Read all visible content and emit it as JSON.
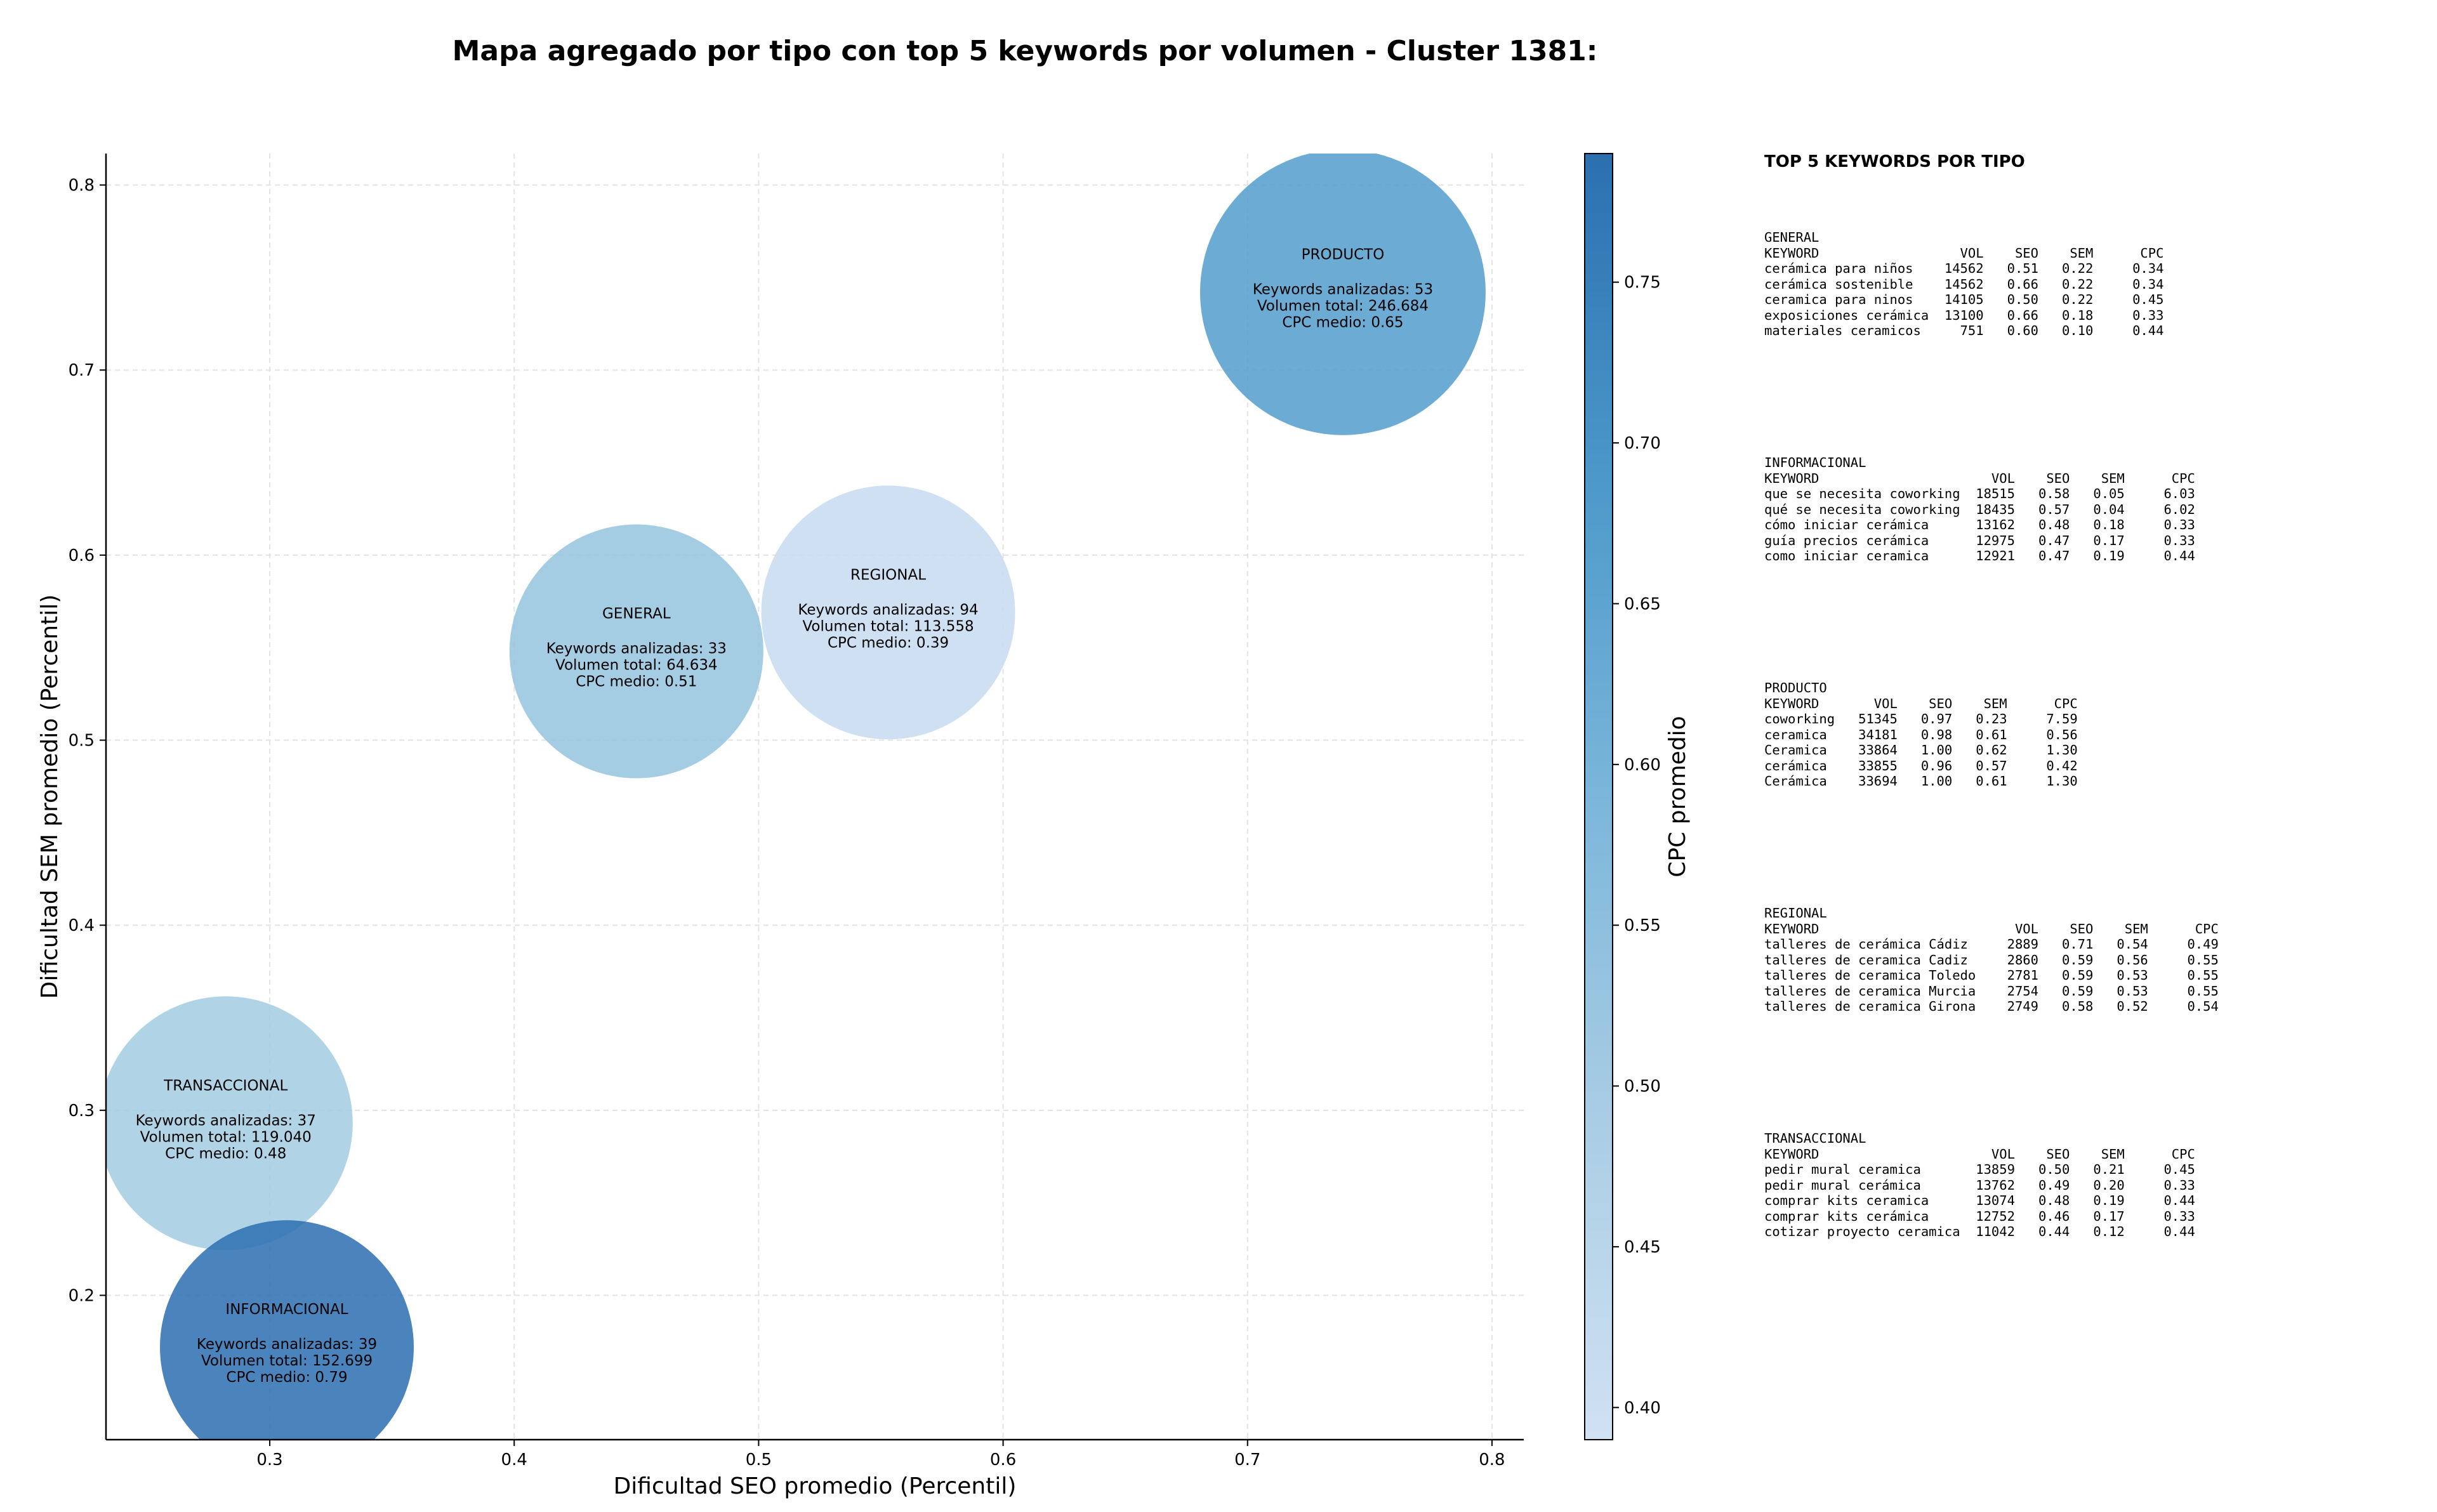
{
  "title": "Mapa agregado por tipo con top 5 keywords por volumen - Cluster 1381:",
  "chart_data": {
    "type": "scatter",
    "subtype": "bubble",
    "xlabel": "Dificultad SEO promedio (Percentil)",
    "ylabel": "Dificultad SEM promedio (Percentil)",
    "xlim": [
      0.233,
      0.813
    ],
    "ylim": [
      0.122,
      0.817
    ],
    "xticks": [
      0.3,
      0.4,
      0.5,
      0.6,
      0.7,
      0.8
    ],
    "yticks": [
      0.2,
      0.3,
      0.4,
      0.5,
      0.6,
      0.7,
      0.8
    ],
    "grid": true,
    "points": [
      {
        "x": 0.739,
        "y": 0.742,
        "cpc": 0.65,
        "volume": 246684,
        "name": "PRODUCTO",
        "lines": [
          "Keywords analizadas: 53",
          "Volumen total: 246.684",
          "CPC medio: 0.65"
        ]
      },
      {
        "x": 0.45,
        "y": 0.548,
        "cpc": 0.51,
        "volume": 64634,
        "name": "GENERAL",
        "lines": [
          "Keywords analizadas: 33",
          "Volumen total: 64.634",
          "CPC medio: 0.51"
        ]
      },
      {
        "x": 0.553,
        "y": 0.569,
        "cpc": 0.39,
        "volume": 113558,
        "name": "REGIONAL",
        "lines": [
          "Keywords analizadas: 94",
          "Volumen total: 113.558",
          "CPC medio: 0.39"
        ]
      },
      {
        "x": 0.282,
        "y": 0.293,
        "cpc": 0.48,
        "volume": 119040,
        "name": "TRANSACCIONAL",
        "lines": [
          "Keywords analizadas: 37",
          "Volumen total: 119.040",
          "CPC medio: 0.48"
        ]
      },
      {
        "x": 0.307,
        "y": 0.172,
        "cpc": 0.79,
        "volume": 152699,
        "name": "INFORMACIONAL",
        "lines": [
          "Keywords analizadas: 39",
          "Volumen total: 152.699",
          "CPC medio: 0.79"
        ]
      }
    ],
    "colorbar": {
      "label": "CPC promedio",
      "min": 0.39,
      "max": 0.79,
      "ticks": [
        "0.40",
        "0.45",
        "0.50",
        "0.55",
        "0.60",
        "0.65",
        "0.70",
        "0.75"
      ],
      "colormap": [
        "#c6dbef",
        "#9ecae1",
        "#6baed6",
        "#4292c6",
        "#2b6fb0"
      ]
    }
  },
  "panel": {
    "title": "TOP 5 KEYWORDS POR TIPO",
    "blocks": [
      {
        "lines": [
          "GENERAL",
          "KEYWORD                  VOL    SEO    SEM      CPC",
          "cerámica para niños    14562   0.51   0.22     0.34",
          "cerámica sostenible    14562   0.66   0.22     0.34",
          "ceramica para ninos    14105   0.50   0.22     0.45",
          "exposiciones cerámica  13100   0.66   0.18     0.33",
          "materiales ceramicos     751   0.60   0.10     0.44"
        ]
      },
      {
        "lines": [
          "INFORMACIONAL",
          "KEYWORD                      VOL    SEO    SEM      CPC",
          "que se necesita coworking  18515   0.58   0.05     6.03",
          "qué se necesita coworking  18435   0.57   0.04     6.02",
          "cómo iniciar cerámica      13162   0.48   0.18     0.33",
          "guía precios cerámica      12975   0.47   0.17     0.33",
          "como iniciar ceramica      12921   0.47   0.19     0.44"
        ]
      },
      {
        "lines": [
          "PRODUCTO",
          "KEYWORD       VOL    SEO    SEM      CPC",
          "coworking   51345   0.97   0.23     7.59",
          "ceramica    34181   0.98   0.61     0.56",
          "Ceramica    33864   1.00   0.62     1.30",
          "cerámica    33855   0.96   0.57     0.42",
          "Cerámica    33694   1.00   0.61     1.30"
        ]
      },
      {
        "lines": [
          "REGIONAL",
          "KEYWORD                         VOL    SEO    SEM      CPC",
          "talleres de cerámica Cádiz     2889   0.71   0.54     0.49",
          "talleres de ceramica Cadiz     2860   0.59   0.56     0.55",
          "talleres de ceramica Toledo    2781   0.59   0.53     0.55",
          "talleres de ceramica Murcia    2754   0.59   0.53     0.55",
          "talleres de ceramica Girona    2749   0.58   0.52     0.54"
        ]
      },
      {
        "lines": [
          "TRANSACCIONAL",
          "KEYWORD                      VOL    SEO    SEM      CPC",
          "pedir mural ceramica       13859   0.50   0.21     0.45",
          "pedir mural cerámica       13762   0.49   0.20     0.33",
          "comprar kits ceramica      13074   0.48   0.19     0.44",
          "comprar kits cerámica      12752   0.46   0.17     0.33",
          "cotizar proyecto ceramica  11042   0.44   0.12     0.44"
        ]
      }
    ]
  }
}
